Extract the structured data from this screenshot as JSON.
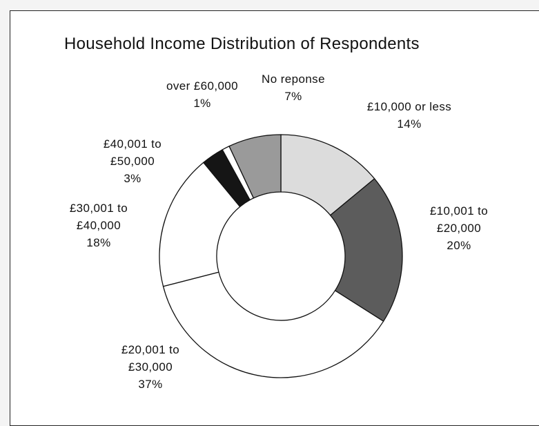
{
  "chart_data": {
    "type": "donut",
    "title": "Household Income Distribution of Respondents",
    "categories": [
      "£10,000 or less",
      "£10,001 to £20,000",
      "£20,001 to £30,000",
      "£30,001 to £40,000",
      "£40,001 to £50,000",
      "over £60,000",
      "No reponse"
    ],
    "values": [
      14,
      20,
      37,
      18,
      3,
      1,
      7
    ],
    "value_labels": [
      "14%",
      "20%",
      "37%",
      "18%",
      "3%",
      "1%",
      "7%"
    ],
    "colors": [
      "#dcdcdc",
      "#5c5c5c",
      "#ffffff",
      "#ffffff",
      "#151515",
      "#ffffff",
      "#9a9a9a"
    ]
  }
}
